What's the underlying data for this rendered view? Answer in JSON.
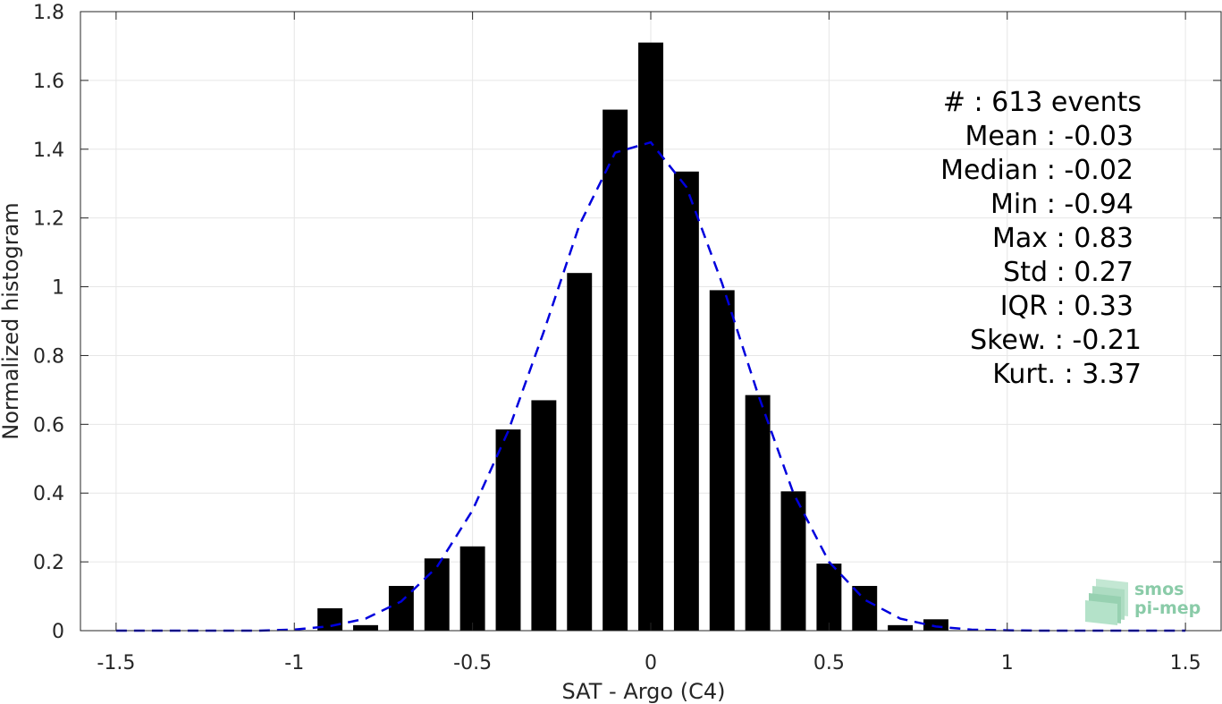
{
  "chart_data": {
    "type": "bar",
    "xlabel": "SAT - Argo (C4)",
    "ylabel": "Normalized histogram",
    "xlim": [
      -1.6,
      1.6
    ],
    "ylim": [
      0,
      1.8
    ],
    "xticks": [
      -1.5,
      -1,
      -0.5,
      0,
      0.5,
      1,
      1.5
    ],
    "xtick_labels": [
      "-1.5",
      "-1",
      "-0.5",
      "0",
      "0.5",
      "1",
      "1.5"
    ],
    "yticks": [
      0,
      0.2,
      0.4,
      0.6,
      0.8,
      1,
      1.2,
      1.4,
      1.6,
      1.8
    ],
    "ytick_labels": [
      "0",
      "0.2",
      "0.4",
      "0.6",
      "0.8",
      "1",
      "1.2",
      "1.4",
      "1.6",
      "1.8"
    ],
    "grid": true,
    "bar_width": 0.07,
    "bar_color": "#000000",
    "curve_color": "#0000dd",
    "bars": {
      "x": [
        -0.9,
        -0.8,
        -0.7,
        -0.6,
        -0.5,
        -0.4,
        -0.3,
        -0.2,
        -0.1,
        0.0,
        0.1,
        0.2,
        0.3,
        0.4,
        0.5,
        0.6,
        0.7,
        0.8
      ],
      "values": [
        0.065,
        0.016,
        0.13,
        0.21,
        0.245,
        0.585,
        0.67,
        1.04,
        1.515,
        1.71,
        1.335,
        0.99,
        0.685,
        0.405,
        0.195,
        0.13,
        0.016,
        0.033
      ]
    },
    "fit_curve": {
      "style": "dashed",
      "x": [
        -1.5,
        -1.4,
        -1.3,
        -1.2,
        -1.1,
        -1.0,
        -0.9,
        -0.8,
        -0.7,
        -0.6,
        -0.5,
        -0.4,
        -0.3,
        -0.2,
        -0.1,
        0.0,
        0.1,
        0.2,
        0.3,
        0.4,
        0.5,
        0.6,
        0.7,
        0.8,
        0.9,
        1.0,
        1.1,
        1.2,
        1.3,
        1.4,
        1.5
      ],
      "y": [
        0.0,
        0.0,
        0.0,
        0.0,
        0.0,
        0.003,
        0.013,
        0.035,
        0.085,
        0.185,
        0.35,
        0.58,
        0.87,
        1.18,
        1.39,
        1.42,
        1.29,
        1.01,
        0.69,
        0.4,
        0.2,
        0.09,
        0.035,
        0.012,
        0.003,
        0.001,
        0.0,
        0.0,
        0.0,
        0.0,
        0.0
      ]
    },
    "annotations": [
      "#  : 613 events",
      "Mean : -0.03",
      "Median : -0.02",
      "Min : -0.94",
      "Max : 0.83",
      "Std : 0.27",
      "IQR : 0.33",
      "Skew. : -0.21",
      "Kurt. : 3.37"
    ]
  },
  "logo": {
    "line1": "smos",
    "line2": "pi-mep"
  }
}
